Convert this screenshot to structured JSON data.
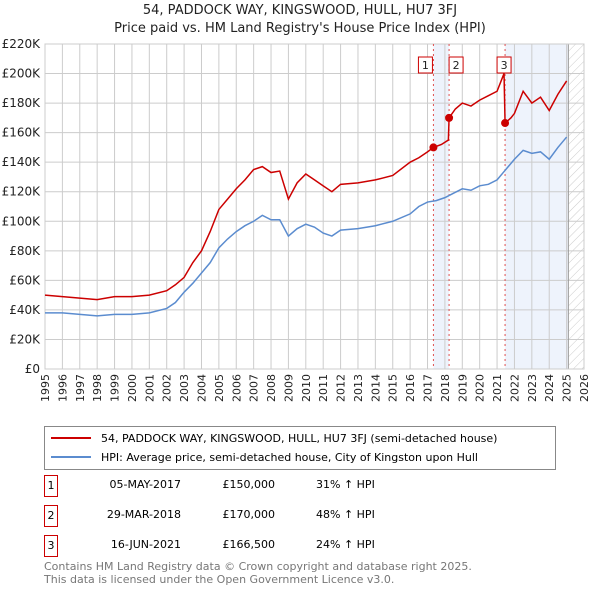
{
  "chart_data": {
    "type": "line",
    "title": "54, PADDOCK WAY, KINGSWOOD, HULL, HU7 3FJ",
    "subtitle": "Price paid vs. HM Land Registry's House Price Index (HPI)",
    "xlim": [
      1995,
      2026
    ],
    "ylim": [
      0,
      220000
    ],
    "x_ticks": [
      "1995",
      "1996",
      "1997",
      "1998",
      "1999",
      "2000",
      "2001",
      "2002",
      "2003",
      "2004",
      "2005",
      "2006",
      "2007",
      "2008",
      "2009",
      "2010",
      "2011",
      "2012",
      "2013",
      "2014",
      "2015",
      "2016",
      "2017",
      "2018",
      "2019",
      "2020",
      "2021",
      "2022",
      "2023",
      "2024",
      "2025",
      "2026"
    ],
    "y_ticks": [
      {
        "v": 0,
        "label": "£0"
      },
      {
        "v": 20000,
        "label": "£20K"
      },
      {
        "v": 40000,
        "label": "£40K"
      },
      {
        "v": 60000,
        "label": "£60K"
      },
      {
        "v": 80000,
        "label": "£80K"
      },
      {
        "v": 100000,
        "label": "£100K"
      },
      {
        "v": 120000,
        "label": "£120K"
      },
      {
        "v": 140000,
        "label": "£140K"
      },
      {
        "v": 160000,
        "label": "£160K"
      },
      {
        "v": 180000,
        "label": "£180K"
      },
      {
        "v": 200000,
        "label": "£200K"
      },
      {
        "v": 220000,
        "label": "£220K"
      }
    ],
    "grid": true,
    "shaded_ranges": [
      [
        2017.34,
        2018.24
      ],
      [
        2021.46,
        2025.1
      ]
    ],
    "future_hatch_from": 2025.1,
    "series": [
      {
        "name": "54, PADDOCK WAY, KINGSWOOD, HULL, HU7 3FJ (semi-detached house)",
        "color": "#cc0000",
        "x": [
          1995,
          1996,
          1997,
          1998,
          1999,
          2000,
          2001,
          2002,
          2002.5,
          2003,
          2003.5,
          2004,
          2004.5,
          2005,
          2005.5,
          2006,
          2006.5,
          2007,
          2007.5,
          2008,
          2008.5,
          2009,
          2009.5,
          2010,
          2010.5,
          2011,
          2011.5,
          2012,
          2013,
          2014,
          2015,
          2016,
          2016.5,
          2017,
          2017.34,
          2017.8,
          2018.2,
          2018.24,
          2018.6,
          2019,
          2019.5,
          2020,
          2020.5,
          2021,
          2021.4,
          2021.46,
          2021.8,
          2022,
          2022.5,
          2023,
          2023.5,
          2024,
          2024.5,
          2025
        ],
        "y": [
          50000,
          49000,
          48000,
          47000,
          49000,
          49000,
          50000,
          53000,
          57000,
          62000,
          72000,
          80000,
          93000,
          108000,
          115000,
          122000,
          128000,
          135000,
          137000,
          133000,
          134000,
          115000,
          126000,
          132000,
          128000,
          124000,
          120000,
          125000,
          126000,
          128000,
          131000,
          140000,
          143000,
          147000,
          150000,
          152000,
          155000,
          170000,
          176000,
          180000,
          178000,
          182000,
          185000,
          188000,
          200000,
          166500,
          170000,
          173000,
          188000,
          180000,
          184000,
          175000,
          186000,
          195000
        ]
      },
      {
        "name": "HPI: Average price, semi-detached house, City of Kingston upon Hull",
        "color": "#5b8ccf",
        "x": [
          1995,
          1996,
          1997,
          1998,
          1999,
          2000,
          2001,
          2002,
          2002.5,
          2003,
          2003.5,
          2004,
          2004.5,
          2005,
          2005.5,
          2006,
          2006.5,
          2007,
          2007.5,
          2008,
          2008.5,
          2009,
          2009.5,
          2010,
          2010.5,
          2011,
          2011.5,
          2012,
          2013,
          2014,
          2015,
          2016,
          2016.5,
          2017,
          2017.5,
          2018,
          2018.5,
          2019,
          2019.5,
          2020,
          2020.5,
          2021,
          2021.5,
          2022,
          2022.5,
          2023,
          2023.5,
          2024,
          2024.5,
          2025
        ],
        "y": [
          38000,
          38000,
          37000,
          36000,
          37000,
          37000,
          38000,
          41000,
          45000,
          52000,
          58000,
          65000,
          72000,
          82000,
          88000,
          93000,
          97000,
          100000,
          104000,
          101000,
          101000,
          90000,
          95000,
          98000,
          96000,
          92000,
          90000,
          94000,
          95000,
          97000,
          100000,
          105000,
          110000,
          113000,
          114000,
          116000,
          119000,
          122000,
          121000,
          124000,
          125000,
          128000,
          135000,
          142000,
          148000,
          146000,
          147000,
          142000,
          150000,
          157000
        ]
      }
    ],
    "sales": [
      {
        "label": "1",
        "x": 2017.34,
        "price": 150000,
        "date": "05-MAY-2017",
        "price_text": "£150,000",
        "hpi_text": "31% ↑ HPI"
      },
      {
        "label": "2",
        "x": 2018.24,
        "price": 170000,
        "date": "29-MAR-2018",
        "price_text": "£170,000",
        "hpi_text": "48% ↑ HPI"
      },
      {
        "label": "3",
        "x": 2021.46,
        "price": 166500,
        "date": "16-JUN-2021",
        "price_text": "£166,500",
        "hpi_text": "24% ↑ HPI"
      }
    ]
  },
  "footer": {
    "line1": "Contains HM Land Registry data © Crown copyright and database right 2025.",
    "line2": "This data is licensed under the Open Government Licence v3.0."
  }
}
